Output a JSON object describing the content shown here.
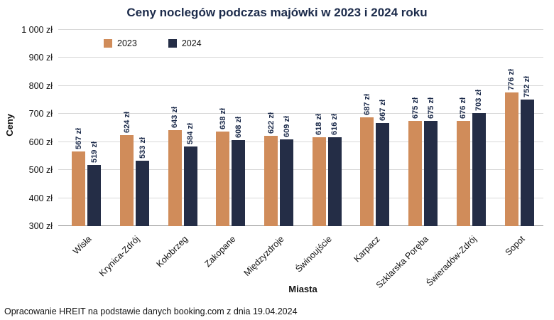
{
  "footer": "Opracowanie HREIT na podstawie danych booking.com z dnia 19.04.2024",
  "chart_data": {
    "type": "bar",
    "title": "Ceny noclegów podczas majówki w 2023 i 2024 roku",
    "categories": [
      "Wisła",
      "Krynica-Zdrój",
      "Kołobrzeg",
      "Zakopane",
      "Międzyzdroje",
      "Świnoujście",
      "Karpacz",
      "Szklarska Poręba",
      "Świeradów-Zdrój",
      "Sopot"
    ],
    "series": [
      {
        "name": "2023",
        "color": "#d08c5a",
        "values": [
          567,
          624,
          643,
          638,
          622,
          618,
          687,
          675,
          676,
          776
        ]
      },
      {
        "name": "2024",
        "color": "#242d46",
        "values": [
          519,
          533,
          584,
          608,
          609,
          616,
          667,
          675,
          703,
          752
        ]
      }
    ],
    "xlabel": "Miasta",
    "ylabel": "Ceny",
    "ylim": [
      300,
      1000
    ],
    "ytick_step": 100,
    "ytick_labels": [
      "1 000 zł",
      "900 zł",
      "800 zł",
      "700 zł",
      "600 zł",
      "500 zł",
      "400 zł",
      "300 zł"
    ],
    "value_suffix": " zł",
    "grid": true,
    "legend_position": "top-left"
  }
}
